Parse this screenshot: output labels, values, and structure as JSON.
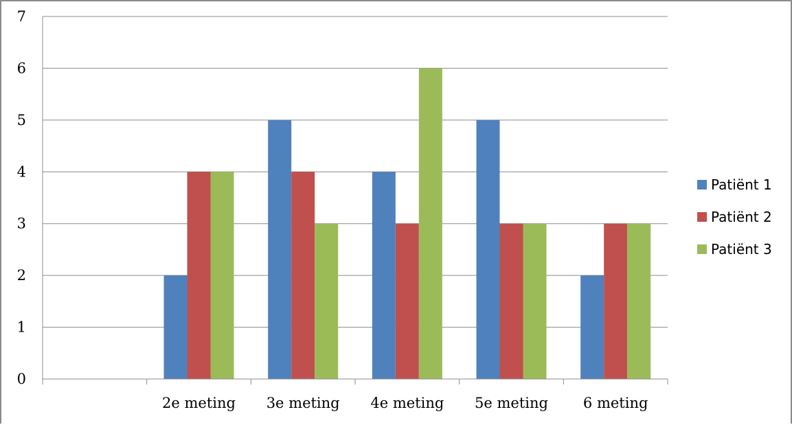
{
  "chart_data": {
    "type": "bar",
    "categories": [
      "",
      "2e meting",
      "3e meting",
      "4e meting",
      "5e meting",
      "6 meting"
    ],
    "series": [
      {
        "name": "Patiënt 1",
        "color": "#4F81BD",
        "values": [
          0,
          2,
          5,
          4,
          5,
          2
        ]
      },
      {
        "name": "Patiënt 2",
        "color": "#C0504D",
        "values": [
          0,
          4,
          4,
          3,
          3,
          3
        ]
      },
      {
        "name": "Patiënt 3",
        "color": "#9BBB59",
        "values": [
          0,
          4,
          3,
          6,
          3,
          3
        ]
      }
    ],
    "yticks": [
      "0",
      "1",
      "2",
      "3",
      "4",
      "5",
      "6",
      "7"
    ],
    "ylim": [
      0,
      7
    ],
    "grid": true,
    "legend_position": "right",
    "title": "",
    "xlabel": "",
    "ylabel": ""
  }
}
